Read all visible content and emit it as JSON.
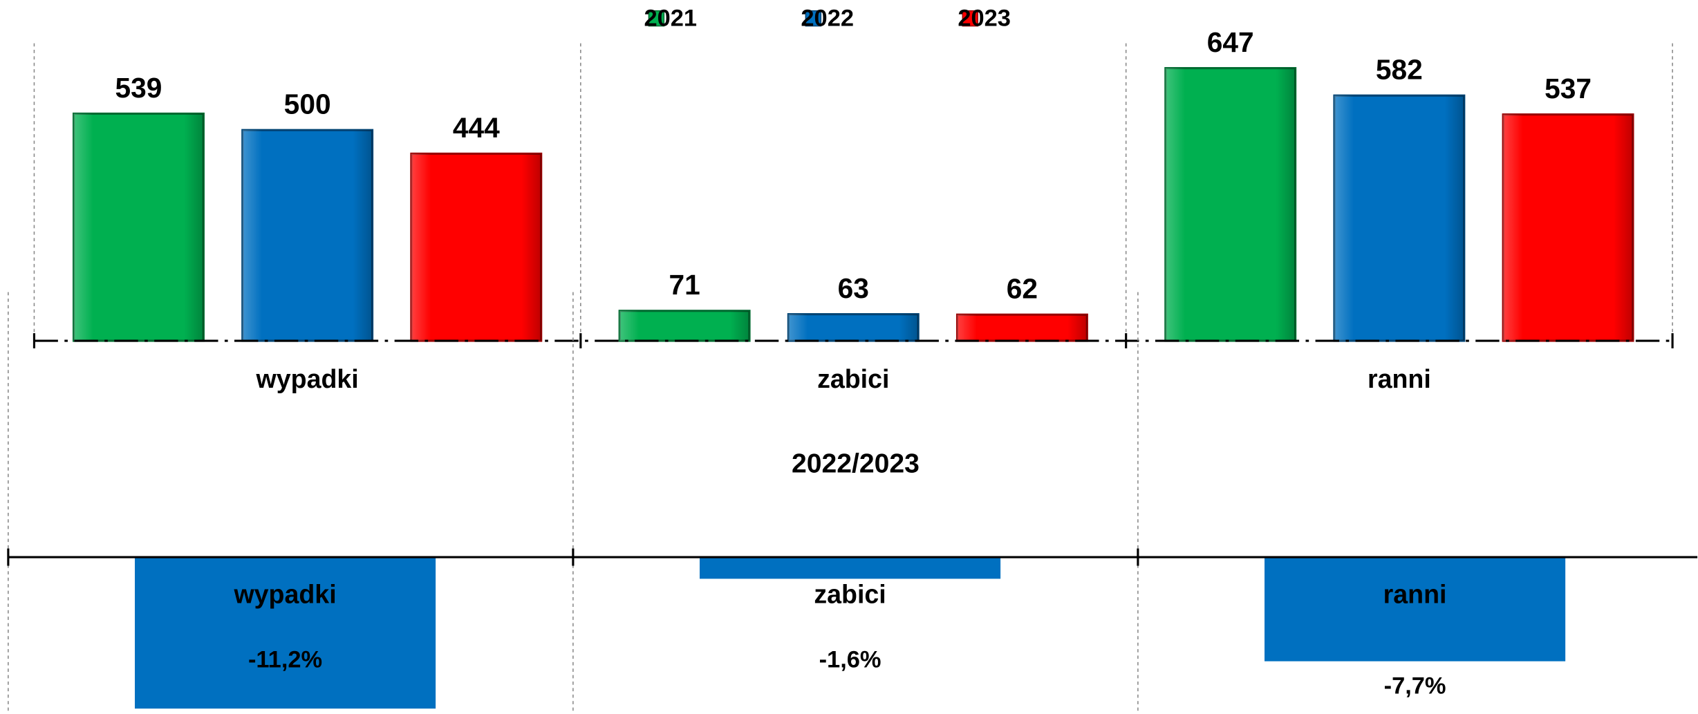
{
  "chart_data": [
    {
      "type": "bar",
      "categories": [
        "wypadki",
        "zabici",
        "ranni"
      ],
      "series": [
        {
          "name": "2021",
          "color": "#00b050",
          "values": [
            539,
            71,
            647
          ]
        },
        {
          "name": "2022",
          "color": "#0070c0",
          "values": [
            500,
            63,
            582
          ]
        },
        {
          "name": "2023",
          "color": "#ff0000",
          "values": [
            444,
            62,
            537
          ]
        }
      ],
      "legend": "top"
    },
    {
      "type": "bar",
      "title": "2022/2023",
      "categories": [
        "wypadki",
        "zabici",
        "ranni"
      ],
      "values": [
        -11.2,
        -1.6,
        -7.7
      ],
      "value_labels": [
        "-11,2%",
        "-1,6%",
        "-7,7%"
      ],
      "color": "#0070c0"
    }
  ]
}
